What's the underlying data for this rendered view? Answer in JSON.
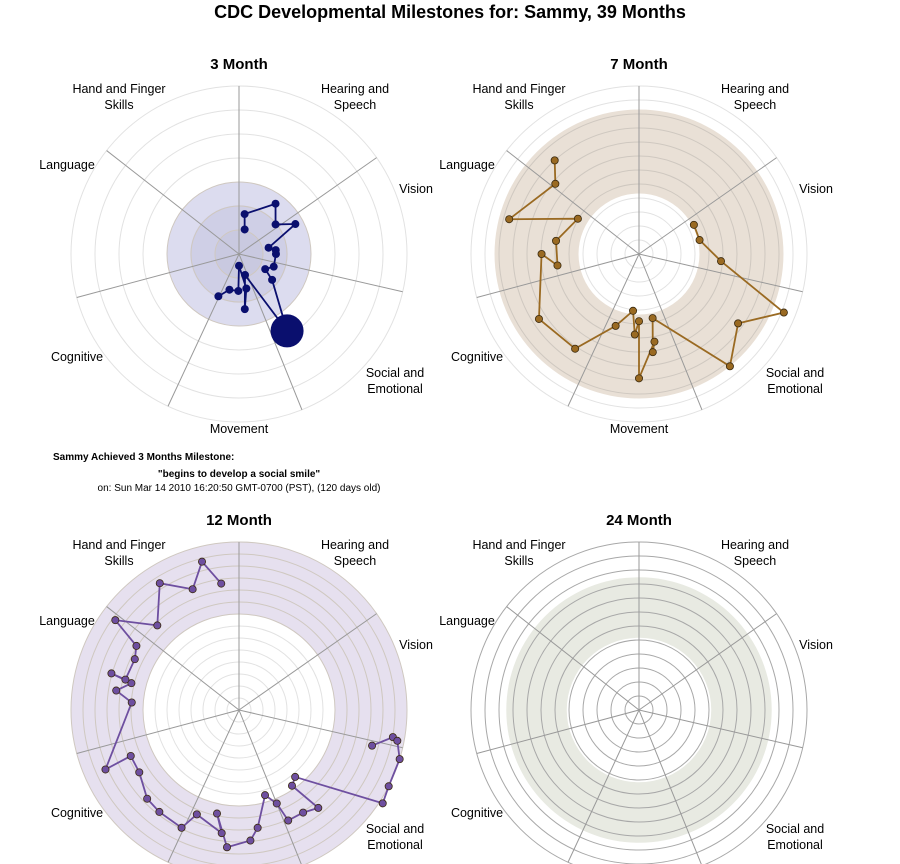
{
  "page_title": "CDC Developmental Milestones for: Sammy, 39 Months",
  "milestone_note": {
    "heading": "Sammy Achieved 3 Months Milestone:",
    "quote": "\"begins to develop a social smile\"",
    "date": "on: Sun Mar 14 2010 16:20:50 GMT-0700 (PST), (120 days old)"
  },
  "axis_labels": [
    [
      "Hearing and",
      "Speech"
    ],
    [
      "Vision"
    ],
    [
      "Social and",
      "Emotional"
    ],
    [
      "Movement"
    ],
    [
      "Cognitive"
    ],
    [
      "Language"
    ],
    [
      "Hand and Finger",
      "Skills"
    ]
  ],
  "chart_data": [
    {
      "type": "radar",
      "title": "3 Month",
      "color": "#0a0f6e",
      "band_color": "#dcdcef",
      "inner_band_color": "#cfcfe6",
      "rings": 7,
      "band": [
        0,
        0.43
      ],
      "show_movement_label": true,
      "points": [
        {
          "angle": 8,
          "r": 0.24
        },
        {
          "angle": 13,
          "r": 0.15
        },
        {
          "angle": 36,
          "r": 0.37
        },
        {
          "angle": 51,
          "r": 0.28
        },
        {
          "angle": 62,
          "r": 0.38
        },
        {
          "angle": 78,
          "r": 0.18
        },
        {
          "angle": 84,
          "r": 0.22
        },
        {
          "angle": 90,
          "r": 0.22
        },
        {
          "angle": 110,
          "r": 0.22
        },
        {
          "angle": 120,
          "r": 0.18
        },
        {
          "angle": 128,
          "r": 0.25
        },
        {
          "angle": 148,
          "r": 0.54,
          "highlight": true
        },
        {
          "angle": 164,
          "r": 0.13
        },
        {
          "angle": 168,
          "r": 0.21
        },
        {
          "angle": 174,
          "r": 0.33
        },
        {
          "angle": 180,
          "r": 0.07
        },
        {
          "angle": 181,
          "r": 0.22
        },
        {
          "angle": 195,
          "r": 0.22
        },
        {
          "angle": 206,
          "r": 0.28
        }
      ],
      "path_order": [
        1,
        0,
        2,
        3,
        4,
        5,
        6,
        7,
        8,
        9,
        10,
        11,
        12,
        14,
        13,
        15,
        16,
        17,
        18
      ]
    },
    {
      "type": "radar",
      "title": "7 Month",
      "color": "#9a6a22",
      "band_color": "#e9e0d6",
      "rings": 12,
      "band": [
        0.36,
        0.86
      ],
      "show_movement_label": true,
      "points": [
        {
          "angle": 62,
          "r": 0.37
        },
        {
          "angle": 77,
          "r": 0.37
        },
        {
          "angle": 95,
          "r": 0.49
        },
        {
          "angle": 112,
          "r": 0.93
        },
        {
          "angle": 125,
          "r": 0.72
        },
        {
          "angle": 141,
          "r": 0.86
        },
        {
          "angle": 168,
          "r": 0.39
        },
        {
          "angle": 172,
          "r": 0.59
        },
        {
          "angle": 170,
          "r": 0.53
        },
        {
          "angle": 180,
          "r": 0.74
        },
        {
          "angle": 180,
          "r": 0.4
        },
        {
          "angle": 183,
          "r": 0.48
        },
        {
          "angle": 186,
          "r": 0.34
        },
        {
          "angle": 198,
          "r": 0.45
        },
        {
          "angle": 214,
          "r": 0.68
        },
        {
          "angle": 237,
          "r": 0.71
        },
        {
          "angle": 270,
          "r": 0.58
        },
        {
          "angle": 262,
          "r": 0.49
        },
        {
          "angle": 279,
          "r": 0.5
        },
        {
          "angle": 300,
          "r": 0.42
        },
        {
          "angle": 285,
          "r": 0.8
        },
        {
          "angle": 310,
          "r": 0.65
        },
        {
          "angle": 318,
          "r": 0.75
        }
      ]
    },
    {
      "type": "radar",
      "title": "12 Month",
      "color": "#6e4fa0",
      "band_color": "#e6e0ef",
      "rings": 14,
      "band": [
        0.57,
        1.1
      ],
      "show_movement_label": false,
      "points": [
        {
          "angle": 105,
          "r": 0.82
        },
        {
          "angle": 100,
          "r": 0.93
        },
        {
          "angle": 101,
          "r": 0.96
        },
        {
          "angle": 107,
          "r": 1.0
        },
        {
          "angle": 117,
          "r": 1.0
        },
        {
          "angle": 123,
          "r": 1.02
        },
        {
          "angle": 140,
          "r": 0.52
        },
        {
          "angle": 145,
          "r": 0.55
        },
        {
          "angle": 141,
          "r": 0.75
        },
        {
          "angle": 148,
          "r": 0.72
        },
        {
          "angle": 156,
          "r": 0.72
        },
        {
          "angle": 158,
          "r": 0.6
        },
        {
          "angle": 163,
          "r": 0.53
        },
        {
          "angle": 171,
          "r": 0.71
        },
        {
          "angle": 175,
          "r": 0.78
        },
        {
          "angle": 185,
          "r": 0.82
        },
        {
          "angle": 192,
          "r": 0.63
        },
        {
          "angle": 188,
          "r": 0.74
        },
        {
          "angle": 202,
          "r": 0.67
        },
        {
          "angle": 206,
          "r": 0.78
        },
        {
          "angle": 218,
          "r": 0.77
        },
        {
          "angle": 226,
          "r": 0.76
        },
        {
          "angle": 238,
          "r": 0.7
        },
        {
          "angle": 247,
          "r": 0.7
        },
        {
          "angle": 246,
          "r": 0.87
        },
        {
          "angle": 274,
          "r": 0.64
        },
        {
          "angle": 279,
          "r": 0.74
        },
        {
          "angle": 284,
          "r": 0.66
        },
        {
          "angle": 286,
          "r": 0.79
        },
        {
          "angle": 285,
          "r": 0.7
        },
        {
          "angle": 296,
          "r": 0.69
        },
        {
          "angle": 302,
          "r": 0.72
        },
        {
          "angle": 306,
          "r": 0.91
        },
        {
          "angle": 316,
          "r": 0.7
        },
        {
          "angle": 328,
          "r": 0.89
        },
        {
          "angle": 339,
          "r": 0.77
        },
        {
          "angle": 346,
          "r": 0.91
        },
        {
          "angle": 352,
          "r": 0.76
        }
      ]
    },
    {
      "type": "radar",
      "title": "24 Month",
      "color": "#8a8a8a",
      "band_color": "#e8eae2",
      "rings": 12,
      "band": [
        0.43,
        0.79
      ],
      "show_movement_label": false,
      "points": []
    }
  ]
}
